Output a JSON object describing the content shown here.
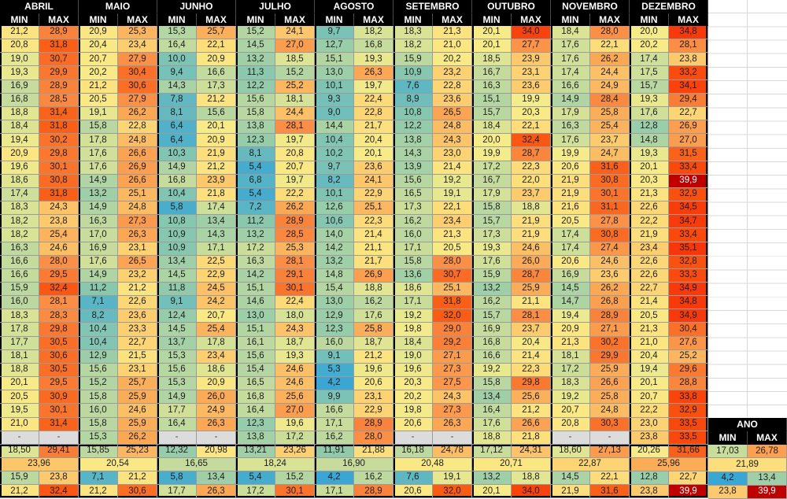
{
  "table": {
    "min_label": "MIN",
    "max_label": "MAX",
    "months": [
      {
        "name": "ABRIL",
        "min": [
          "21,2",
          "20,8",
          "19,0",
          "19,3",
          "16,9",
          "16,8",
          "18,8",
          "18,4",
          "19,4",
          "20,9",
          "19,6",
          "18,6",
          "17,4",
          "18,3",
          "18,2",
          "18,2",
          "16,3",
          "16,6",
          "16,6",
          "15,9",
          "16,0",
          "18,3",
          "17,8",
          "17,7",
          "18,1",
          "18,8",
          "20,1",
          "20,5",
          "19,5",
          "21,0",
          "-"
        ],
        "max": [
          "28,9",
          "31,8",
          "30,7",
          "29,9",
          "28,9",
          "28,5",
          "31,4",
          "31,8",
          "30,2",
          "29,8",
          "30,1",
          "30,8",
          "31,8",
          "24,3",
          "23,8",
          "25,4",
          "24,6",
          "28,0",
          "29,5",
          "32,4",
          "28,1",
          "28,3",
          "29,8",
          "30,5",
          "30,6",
          "30,5",
          "29,5",
          "30,9",
          "30,1",
          "31,4",
          "-"
        ],
        "avg_min": "18,50",
        "avg_max": "29,41",
        "avg": "23,96",
        "rec_min": [
          "15,9",
          "23,8"
        ],
        "rec_max": [
          "21,2",
          "32,4"
        ]
      },
      {
        "name": "MAIO",
        "min": [
          "20,9",
          "20,4",
          "20,7",
          "20,2",
          "21,2",
          "20,5",
          "19,1",
          "15,8",
          "17,8",
          "17,6",
          "17,6",
          "14,9",
          "13,2",
          "14,9",
          "16,3",
          "17,0",
          "16,9",
          "17,6",
          "14,9",
          "11,2",
          "7,1",
          "8,2",
          "10,4",
          "10,4",
          "12,9",
          "15,6",
          "15,2",
          "15,8",
          "16,0",
          "15,8",
          "15,3"
        ],
        "max": [
          "25,3",
          "23,4",
          "27,9",
          "30,4",
          "30,6",
          "27,9",
          "26,2",
          "22,8",
          "24,8",
          "26,6",
          "26,9",
          "26,6",
          "25,1",
          "24,8",
          "27,3",
          "26,3",
          "23,1",
          "26,5",
          "23,2",
          "21,2",
          "22,6",
          "23,6",
          "23,3",
          "22,7",
          "21,5",
          "23,1",
          "25,7",
          "25,9",
          "24,6",
          "25,9",
          "26,2"
        ],
        "avg_min": "15,85",
        "avg_max": "25,23",
        "avg": "20,54",
        "rec_min": [
          "7,1",
          "21,2"
        ],
        "rec_max": [
          "21,2",
          "30,6"
        ]
      },
      {
        "name": "JUNHO",
        "min": [
          "15,3",
          "16,4",
          "10,0",
          "9,4",
          "14,3",
          "7,8",
          "8,1",
          "6,4",
          "6,4",
          "10,3",
          "14,9",
          "16,8",
          "10,4",
          "5,8",
          "10,8",
          "10,9",
          "10,9",
          "13,4",
          "14,5",
          "11,8",
          "9,1",
          "12,4",
          "14,5",
          "13,7",
          "15,3",
          "15,6",
          "15,3",
          "14,9",
          "17,7",
          "16,4",
          "-"
        ],
        "max": [
          "25,7",
          "22,1",
          "20,9",
          "16,6",
          "17,3",
          "21,2",
          "15,6",
          "20,1",
          "20,9",
          "21,9",
          "21,2",
          "23,9",
          "21,8",
          "17,4",
          "13,4",
          "14,3",
          "17,1",
          "22,5",
          "22,9",
          "24,5",
          "24,2",
          "20,7",
          "25,4",
          "17,8",
          "23,4",
          "18,6",
          "20,9",
          "26,0",
          "24,9",
          "26,3",
          "-"
        ],
        "avg_min": "12,32",
        "avg_max": "20,98",
        "avg": "16,65",
        "rec_min": [
          "5,8",
          "13,4"
        ],
        "rec_max": [
          "17,7",
          "26,3"
        ]
      },
      {
        "name": "JULHO",
        "min": [
          "15,2",
          "14,5",
          "13,2",
          "11,3",
          "12,2",
          "15,6",
          "15,8",
          "13,8",
          "12,3",
          "8,1",
          "5,4",
          "6,8",
          "5,4",
          "7,2",
          "11,2",
          "13,2",
          "17,2",
          "16,3",
          "14,2",
          "15,1",
          "14,6",
          "13,0",
          "15,1",
          "16,1",
          "15,6",
          "15,4",
          "16,5",
          "16,8",
          "16,4",
          "12,3",
          "13,8"
        ],
        "max": [
          "24,1",
          "27,0",
          "18,5",
          "15,2",
          "25,2",
          "18,1",
          "24,4",
          "28,1",
          "19,7",
          "20,8",
          "20,7",
          "19,7",
          "22,2",
          "26,2",
          "28,9",
          "28,5",
          "25,3",
          "28,1",
          "29,1",
          "30,1",
          "22,4",
          "18,0",
          "24,3",
          "18,7",
          "19,3",
          "24,6",
          "24,6",
          "25,6",
          "27,0",
          "19,6",
          "17,2"
        ],
        "avg_min": "13,21",
        "avg_max": "23,26",
        "avg": "18,24",
        "rec_min": [
          "5,4",
          "15,2"
        ],
        "rec_max": [
          "17,2",
          "30,1"
        ]
      },
      {
        "name": "AGOSTO",
        "min": [
          "9,7",
          "12,7",
          "15,1",
          "13,0",
          "10,1",
          "9,3",
          "9,0",
          "14,4",
          "10,4",
          "10,2",
          "9,7",
          "8,2",
          "10,1",
          "12,6",
          "10,6",
          "14,0",
          "14,2",
          "13,2",
          "14,8",
          "15,4",
          "13,0",
          "12,9",
          "12,3",
          "16,0",
          "9,1",
          "5,3",
          "4,2",
          "9,9",
          "16,6",
          "17,1",
          "16,2"
        ],
        "max": [
          "18,2",
          "16,8",
          "19,3",
          "26,3",
          "19,7",
          "22,4",
          "22,8",
          "21,7",
          "20,4",
          "20,1",
          "23,6",
          "24,1",
          "22,9",
          "25,1",
          "22,3",
          "21,4",
          "21,1",
          "21,7",
          "26,9",
          "18,8",
          "16,2",
          "17,6",
          "25,8",
          "18,7",
          "21,2",
          "19,6",
          "20,6",
          "23,1",
          "22,9",
          "28,9",
          "28,0"
        ],
        "avg_min": "11,91",
        "avg_max": "21,88",
        "avg": "16,90",
        "rec_min": [
          "4,2",
          "16,2"
        ],
        "rec_max": [
          "17,1",
          "28,9"
        ]
      },
      {
        "name": "SETEMBRO",
        "min": [
          "18,3",
          "18,2",
          "15,9",
          "10,9",
          "7,6",
          "8,9",
          "10,8",
          "12,2",
          "13,8",
          "14,3",
          "13,9",
          "15,6",
          "16,5",
          "17,3",
          "16,2",
          "16,0",
          "17,1",
          "15,8",
          "13,6",
          "18,6",
          "17,1",
          "19,2",
          "19,8",
          "18,4",
          "19,0",
          "19,6",
          "20,3",
          "20,2",
          "19,8",
          "20,6",
          "-"
        ],
        "max": [
          "21,3",
          "21,0",
          "20,2",
          "23,2",
          "22,8",
          "23,6",
          "26,5",
          "24,8",
          "24,3",
          "23,0",
          "21,4",
          "19,2",
          "19,1",
          "22,1",
          "23,4",
          "21,3",
          "20,5",
          "28,0",
          "30,7",
          "25,1",
          "31,8",
          "32,0",
          "29,0",
          "29,2",
          "27,1",
          "27,3",
          "27,5",
          "24,3",
          "27,3",
          "26,3",
          "-"
        ],
        "avg_min": "16,18",
        "avg_max": "24,78",
        "avg": "20,48",
        "rec_min": [
          "7,6",
          "19,1"
        ],
        "rec_max": [
          "20,6",
          "32,0"
        ]
      },
      {
        "name": "OUTUBRO",
        "min": [
          "20,1",
          "20,1",
          "18,5",
          "16,7",
          "16,3",
          "15,1",
          "15,7",
          "18,4",
          "20,0",
          "19,9",
          "17,2",
          "16,7",
          "17,9",
          "15,8",
          "15,7",
          "17,3",
          "19,3",
          "17,6",
          "15,9",
          "13,2",
          "16,2",
          "15,7",
          "16,9",
          "16,8",
          "16,6",
          "19,2",
          "15,8",
          "13,4",
          "16,4",
          "17,6",
          "18,8"
        ],
        "max": [
          "34,0",
          "27,7",
          "23,9",
          "23,1",
          "23,6",
          "19,9",
          "20,3",
          "22,1",
          "32,4",
          "28,7",
          "22,3",
          "22,0",
          "23,7",
          "18,8",
          "21,9",
          "21,9",
          "24,6",
          "26,0",
          "28,7",
          "25,9",
          "21,1",
          "28,1",
          "23,7",
          "20,4",
          "21,4",
          "22,3",
          "29,8",
          "25,6",
          "21,2",
          "26,6",
          "21,8"
        ],
        "avg_min": "17,12",
        "avg_max": "24,31",
        "avg": "20,71",
        "rec_min": [
          "13,2",
          "18,8"
        ],
        "rec_max": [
          "20,1",
          "34,0"
        ]
      },
      {
        "name": "NOVEMBRO",
        "min": [
          "18,4",
          "17,6",
          "17,6",
          "17,4",
          "16,6",
          "14,9",
          "17,9",
          "16,3",
          "17,6",
          "19,9",
          "20,6",
          "21,9",
          "21,9",
          "21,6",
          "20,5",
          "17,4",
          "17,4",
          "20,6",
          "16,9",
          "14,5",
          "14,7",
          "19,4",
          "20,9",
          "21,3",
          "18,1",
          "17,2",
          "18,3",
          "19,2",
          "20,7",
          "20,8",
          "-"
        ],
        "max": [
          "28,0",
          "22,1",
          "26,2",
          "24,4",
          "24,9",
          "28,4",
          "25,8",
          "25,4",
          "23,7",
          "24,7",
          "31,6",
          "30,8",
          "30,1",
          "31,1",
          "27,8",
          "30,8",
          "27,4",
          "24,6",
          "23,6",
          "26,2",
          "26,8",
          "28,9",
          "27,1",
          "30,2",
          "29,9",
          "25,9",
          "26,6",
          "25,8",
          "24,8",
          "30,3",
          "-"
        ],
        "avg_min": "18,60",
        "avg_max": "27,13",
        "avg": "22,87",
        "rec_min": [
          "14,5",
          "22,1"
        ],
        "rec_max": [
          "21,9",
          "31,6"
        ]
      },
      {
        "name": "DEZEMBRO",
        "min": [
          "20,0",
          "20,2",
          "17,4",
          "17,5",
          "15,7",
          "19,3",
          "17,6",
          "12,8",
          "14,8",
          "19,3",
          "20,1",
          "20,3",
          "21,3",
          "22,6",
          "22,2",
          "21,9",
          "23,4",
          "22,6",
          "22,6",
          "22,7",
          "21,4",
          "20,5",
          "21,3",
          "21,0",
          "20,4",
          "19,4",
          "20,1",
          "20,7",
          "22,2",
          "23,0",
          "23,8"
        ],
        "max": [
          "34,8",
          "28,1",
          "23,8",
          "33,2",
          "34,1",
          "29,4",
          "22,7",
          "26,9",
          "27,0",
          "31,5",
          "33,4",
          "39,9",
          "32,9",
          "34,5",
          "34,7",
          "33,4",
          "35,1",
          "32,8",
          "33,3",
          "34,9",
          "34,8",
          "34,9",
          "30,4",
          "27,6",
          "25,2",
          "29,6",
          "28,8",
          "33,8",
          "32,9",
          "33,5",
          "33,5"
        ],
        "avg_min": "20,26",
        "avg_max": "31,66",
        "avg": "25,96",
        "rec_min": [
          "12,8",
          "22,7"
        ],
        "rec_max": [
          "23,8",
          "39,9"
        ]
      }
    ]
  },
  "ano": {
    "title": "ANO",
    "min_label": "MIN",
    "max_label": "MAX",
    "avg_min": "17,03",
    "avg_max": "26,78",
    "avg_total": "21,89",
    "rec_min_min": "4,2",
    "rec_min_max": "13,4",
    "rec_max_min": "23,8",
    "rec_max_max": "39,9"
  },
  "style": {
    "color_scale": [
      [
        4.0,
        "#38A5D5"
      ],
      [
        5.5,
        "#46ADCD"
      ],
      [
        7.0,
        "#57B4C6"
      ],
      [
        8.5,
        "#6BBCBD"
      ],
      [
        10.0,
        "#7EC4B4"
      ],
      [
        11.5,
        "#8DC9AC"
      ],
      [
        13.0,
        "#9CCEA8"
      ],
      [
        14.5,
        "#ABD3A4"
      ],
      [
        16.0,
        "#BCD8A0"
      ],
      [
        17.5,
        "#CEDF99"
      ],
      [
        19.0,
        "#E5E791"
      ],
      [
        20.0,
        "#F6EB89"
      ],
      [
        21.0,
        "#FBE681"
      ],
      [
        22.0,
        "#FCDE7B"
      ],
      [
        23.0,
        "#FCD373"
      ],
      [
        24.0,
        "#FCC76B"
      ],
      [
        25.0,
        "#FBB961"
      ],
      [
        26.0,
        "#FBAB57"
      ],
      [
        27.5,
        "#FB964A"
      ],
      [
        29.0,
        "#FA823A"
      ],
      [
        30.5,
        "#FA6F27"
      ],
      [
        32.0,
        "#F95C15"
      ],
      [
        33.5,
        "#F9480C"
      ],
      [
        35.0,
        "#F8380B"
      ],
      [
        36.5,
        "#EE2708"
      ],
      [
        38.0,
        "#DC1404"
      ],
      [
        39.9,
        "#BE0000"
      ]
    ],
    "white_text_min": 38,
    "dash_bg": "#DCDCDC",
    "header_bg": "#000000",
    "header_text": "#FFFFFF",
    "gridline": "#D9D9D9",
    "cell_border": "#9B9B9B",
    "thick_border": "#000000"
  }
}
